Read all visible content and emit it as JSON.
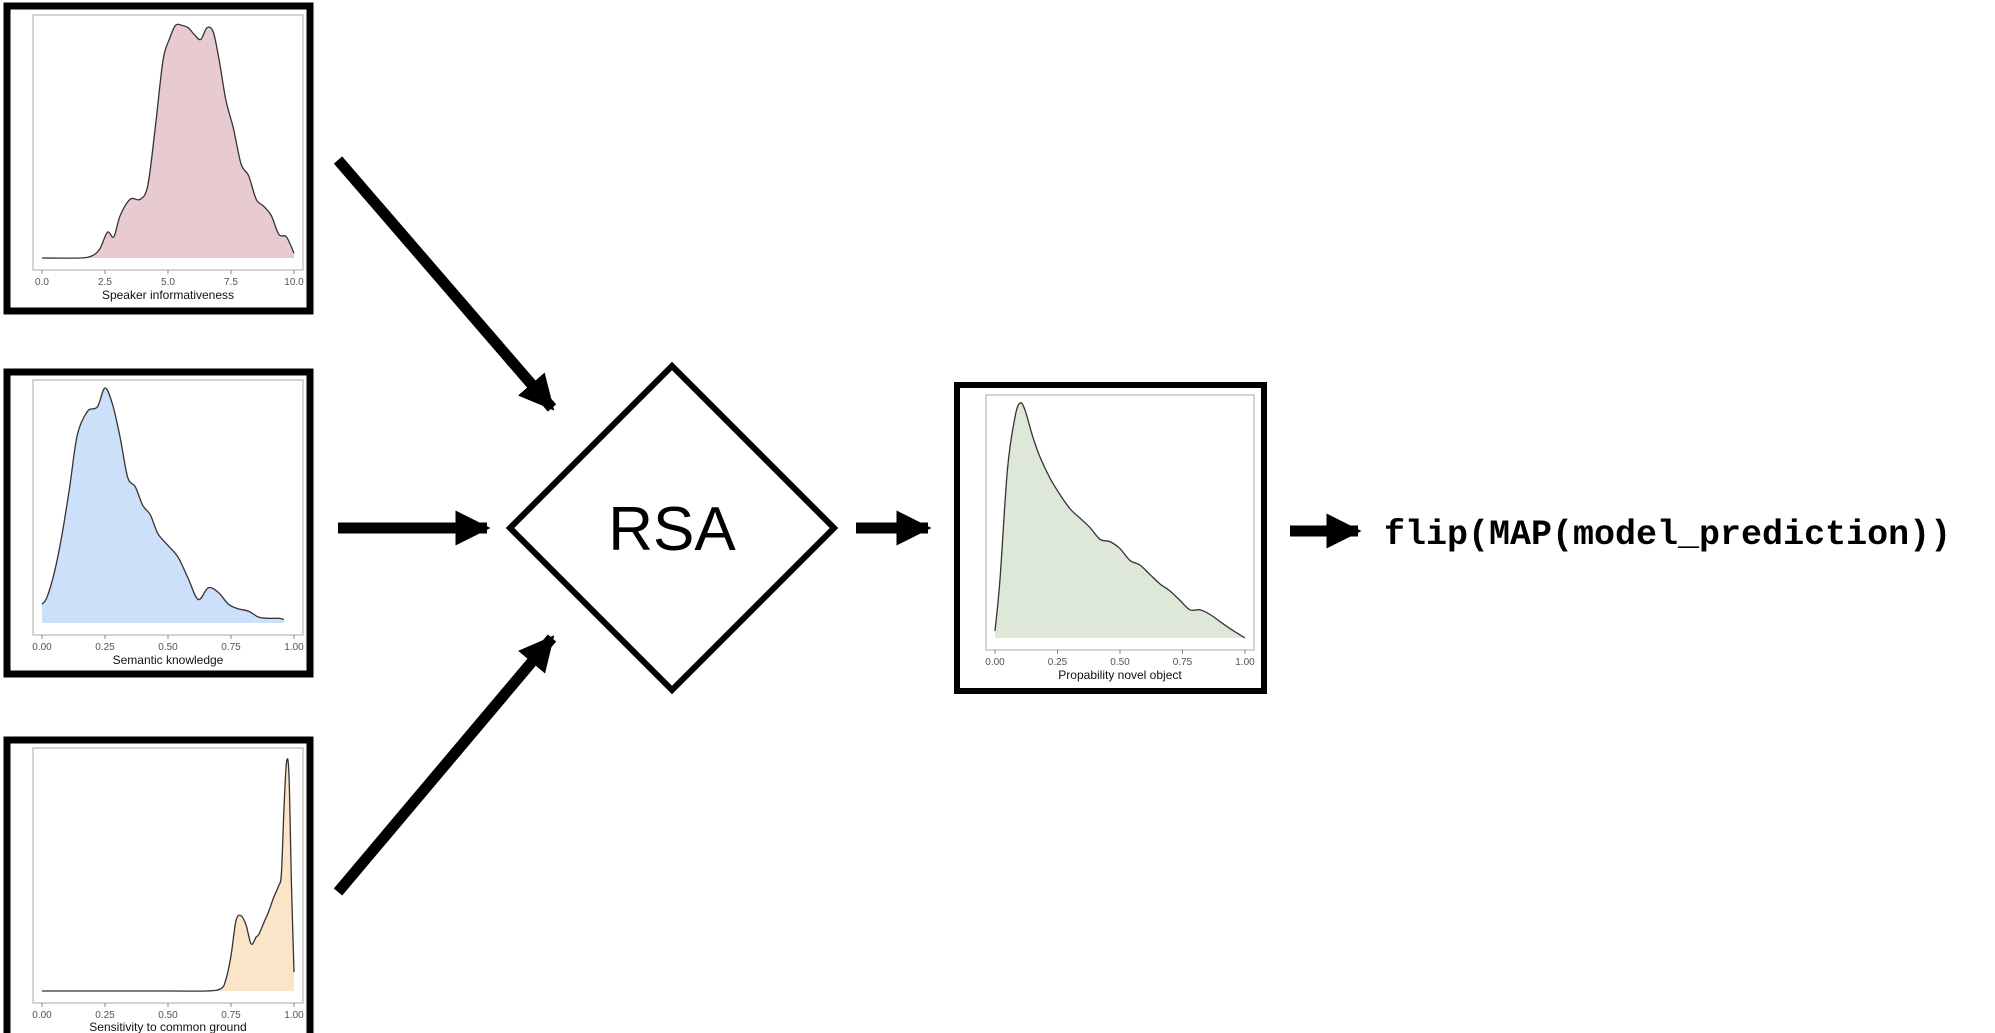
{
  "center_node": {
    "label": "RSA"
  },
  "output_expression": "flip(MAP(model_prediction))",
  "chart_data": [
    {
      "id": "speaker",
      "type": "area",
      "xlabel": "Speaker informativeness",
      "xlim": [
        0,
        10
      ],
      "ylim": [
        0,
        1
      ],
      "xticks": [
        "0.0",
        "2.5",
        "5.0",
        "7.5",
        "10.0"
      ],
      "tick_values": [
        0,
        2.5,
        5,
        7.5,
        10
      ],
      "color": "#e8cbd0",
      "x": [
        0,
        1.5,
        2,
        2.3,
        2.6,
        2.85,
        3.1,
        3.5,
        3.9,
        4.2,
        4.5,
        4.8,
        5.05,
        5.3,
        5.55,
        5.8,
        6.05,
        6.3,
        6.55,
        6.8,
        7.05,
        7.3,
        7.6,
        7.9,
        8.2,
        8.5,
        8.8,
        9.1,
        9.4,
        9.7,
        10
      ],
      "y": [
        0,
        0,
        0.01,
        0.04,
        0.11,
        0.09,
        0.18,
        0.25,
        0.25,
        0.31,
        0.56,
        0.84,
        0.93,
        0.99,
        0.99,
        0.98,
        0.95,
        0.93,
        0.98,
        0.96,
        0.83,
        0.67,
        0.55,
        0.4,
        0.35,
        0.25,
        0.22,
        0.18,
        0.1,
        0.09,
        0.02
      ]
    },
    {
      "id": "semantic",
      "type": "area",
      "xlabel": "Semantic knowledge",
      "xlim": [
        0,
        1
      ],
      "ylim": [
        0,
        1
      ],
      "xticks": [
        "0.00",
        "0.25",
        "0.50",
        "0.75",
        "1.00"
      ],
      "tick_values": [
        0,
        0.25,
        0.5,
        0.75,
        1
      ],
      "color": "#cde0f9",
      "x": [
        0,
        0.02,
        0.05,
        0.08,
        0.11,
        0.14,
        0.18,
        0.22,
        0.25,
        0.28,
        0.31,
        0.34,
        0.37,
        0.4,
        0.43,
        0.46,
        0.5,
        0.54,
        0.58,
        0.62,
        0.66,
        0.7,
        0.74,
        0.78,
        0.82,
        0.86,
        0.9,
        0.94,
        0.96
      ],
      "y": [
        0.08,
        0.11,
        0.22,
        0.38,
        0.58,
        0.8,
        0.9,
        0.92,
        1.0,
        0.93,
        0.79,
        0.62,
        0.58,
        0.5,
        0.46,
        0.38,
        0.33,
        0.28,
        0.19,
        0.1,
        0.15,
        0.13,
        0.08,
        0.06,
        0.05,
        0.025,
        0.02,
        0.02,
        0.015
      ]
    },
    {
      "id": "common_ground",
      "type": "area",
      "xlabel": "Sensitivity to common ground",
      "xlim": [
        0,
        1
      ],
      "ylim": [
        0,
        1
      ],
      "xticks": [
        "0.00",
        "0.25",
        "0.50",
        "0.75",
        "1.00"
      ],
      "tick_values": [
        0,
        0.25,
        0.5,
        0.75,
        1
      ],
      "color": "#fbe5c8",
      "x": [
        0,
        0.5,
        0.65,
        0.71,
        0.73,
        0.75,
        0.77,
        0.79,
        0.81,
        0.83,
        0.85,
        0.86,
        0.88,
        0.9,
        0.92,
        0.94,
        0.95,
        0.96,
        0.97,
        0.98,
        0.99,
        1.0
      ],
      "y": [
        0,
        0,
        0,
        0.01,
        0.05,
        0.15,
        0.3,
        0.32,
        0.28,
        0.2,
        0.23,
        0.24,
        0.29,
        0.34,
        0.4,
        0.45,
        0.5,
        0.77,
        0.97,
        0.92,
        0.45,
        0.08
      ]
    },
    {
      "id": "prediction",
      "type": "area",
      "xlabel": "Propability novel object",
      "xlim": [
        0,
        1
      ],
      "ylim": [
        0,
        1
      ],
      "xticks": [
        "0.00",
        "0.25",
        "0.50",
        "0.75",
        "1.00"
      ],
      "tick_values": [
        0,
        0.25,
        0.5,
        0.75,
        1
      ],
      "color": "#dde8d9",
      "x": [
        0,
        0.02,
        0.05,
        0.08,
        0.1,
        0.12,
        0.15,
        0.18,
        0.22,
        0.26,
        0.3,
        0.34,
        0.38,
        0.42,
        0.46,
        0.5,
        0.54,
        0.58,
        0.62,
        0.66,
        0.7,
        0.74,
        0.78,
        0.82,
        0.86,
        0.9,
        0.94,
        0.97,
        1.0
      ],
      "y": [
        0.03,
        0.25,
        0.72,
        0.94,
        1.0,
        0.97,
        0.86,
        0.77,
        0.68,
        0.61,
        0.55,
        0.51,
        0.47,
        0.42,
        0.41,
        0.38,
        0.33,
        0.31,
        0.27,
        0.23,
        0.2,
        0.16,
        0.12,
        0.12,
        0.1,
        0.07,
        0.04,
        0.02,
        0.0
      ]
    }
  ]
}
